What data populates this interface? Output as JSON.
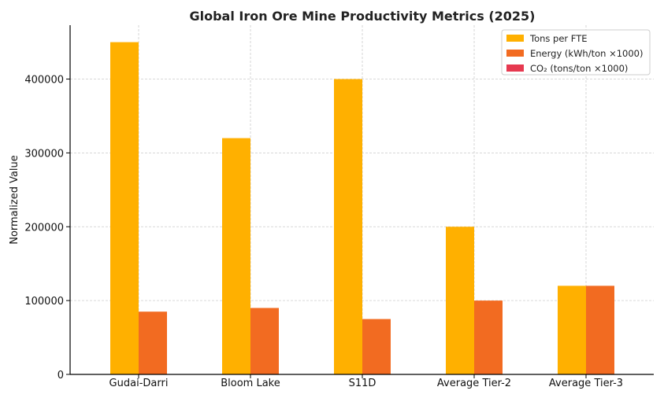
{
  "chart_data": {
    "type": "bar",
    "title": "Global Iron Ore Mine Productivity Metrics (2025)",
    "xlabel": "",
    "ylabel": "Normalized Value",
    "categories": [
      "Gudai-Darri",
      "Bloom Lake",
      "S11D",
      "Average Tier-2",
      "Average Tier-3"
    ],
    "series": [
      {
        "name": "Tons per FTE",
        "color": "#FFB000",
        "values": [
          450000,
          320000,
          400000,
          200000,
          120000
        ]
      },
      {
        "name": "Energy (kWh/ton ×1000)",
        "color": "#F26B21",
        "values": [
          85000,
          90000,
          75000,
          100000,
          120000
        ]
      },
      {
        "name": "CO₂ (tons/ton ×1000)",
        "color": "#E63950",
        "values": [
          0,
          0,
          0,
          0,
          0
        ]
      }
    ],
    "ylim": [
      0,
      473000
    ],
    "yticks": [
      0,
      100000,
      200000,
      300000,
      400000
    ],
    "grid": true,
    "legend_position": "top-right"
  }
}
